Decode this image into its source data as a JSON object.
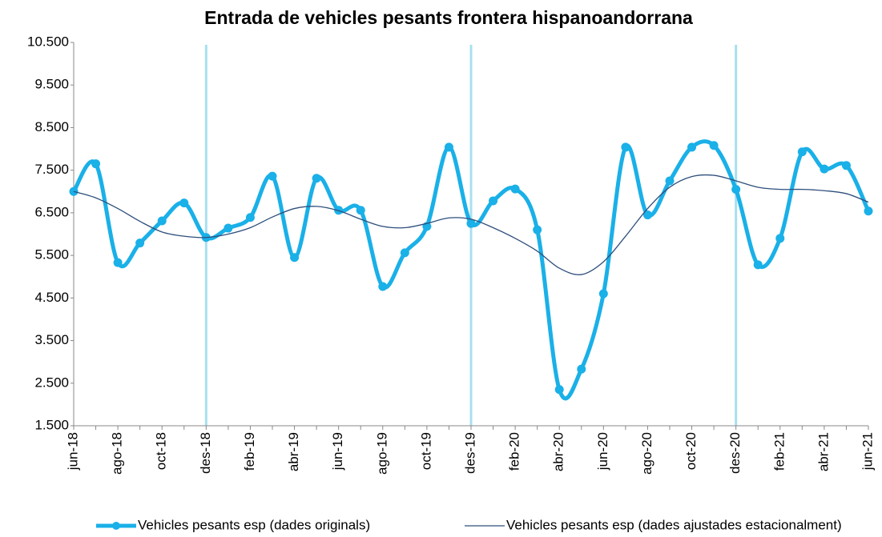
{
  "chart_data": {
    "type": "line",
    "title": "Entrada de vehicles pesants frontera hispanoandorrana",
    "categories": [
      "jun-18",
      null,
      "ago-18",
      null,
      "oct-18",
      null,
      "des-18",
      null,
      "feb-19",
      null,
      "abr-19",
      null,
      "jun-19",
      null,
      "ago-19",
      null,
      "oct-19",
      null,
      "des-19",
      null,
      "feb-20",
      null,
      "abr-20",
      null,
      "jun-20",
      null,
      "ago-20",
      null,
      "oct-20",
      null,
      "des-20",
      null,
      "feb-21",
      null,
      "abr-21",
      null,
      "jun-21"
    ],
    "series": [
      {
        "name": "Vehicles pesants esp (dades originals)",
        "color": "#1ab0e8",
        "values": [
          7000,
          7650,
          5330,
          5790,
          6310,
          6730,
          5920,
          6140,
          6390,
          7360,
          5450,
          7310,
          6560,
          6560,
          4770,
          5560,
          6180,
          8040,
          6250,
          6780,
          7060,
          6100,
          2350,
          2830,
          4600,
          8040,
          6450,
          7250,
          8040,
          8080,
          7050,
          5280,
          5900,
          7930,
          7530,
          7610,
          6540
        ]
      },
      {
        "name": "Vehicles pesants esp (dades ajustades estacionalment)",
        "color": "#2e4f7c",
        "values": [
          7000,
          6850,
          6600,
          6300,
          6050,
          5950,
          5920,
          6000,
          6150,
          6400,
          6600,
          6650,
          6550,
          6350,
          6180,
          6150,
          6250,
          6380,
          6350,
          6150,
          5900,
          5600,
          5200,
          5050,
          5350,
          5950,
          6600,
          7100,
          7350,
          7380,
          7250,
          7100,
          7050,
          7050,
          7020,
          6950,
          6750
        ]
      }
    ],
    "ylim": [
      1500,
      10500
    ],
    "yticks": [
      {
        "value": 1500,
        "label": "1.500"
      },
      {
        "value": 2500,
        "label": "2.500"
      },
      {
        "value": 3500,
        "label": "3.500"
      },
      {
        "value": 4500,
        "label": "4.500"
      },
      {
        "value": 5500,
        "label": "5.500"
      },
      {
        "value": 6500,
        "label": "6.500"
      },
      {
        "value": 7500,
        "label": "7.500"
      },
      {
        "value": 8500,
        "label": "8.500"
      },
      {
        "value": 9500,
        "label": "9.500"
      },
      {
        "value": 10500,
        "label": "10.500"
      }
    ],
    "legend": "bottom"
  }
}
